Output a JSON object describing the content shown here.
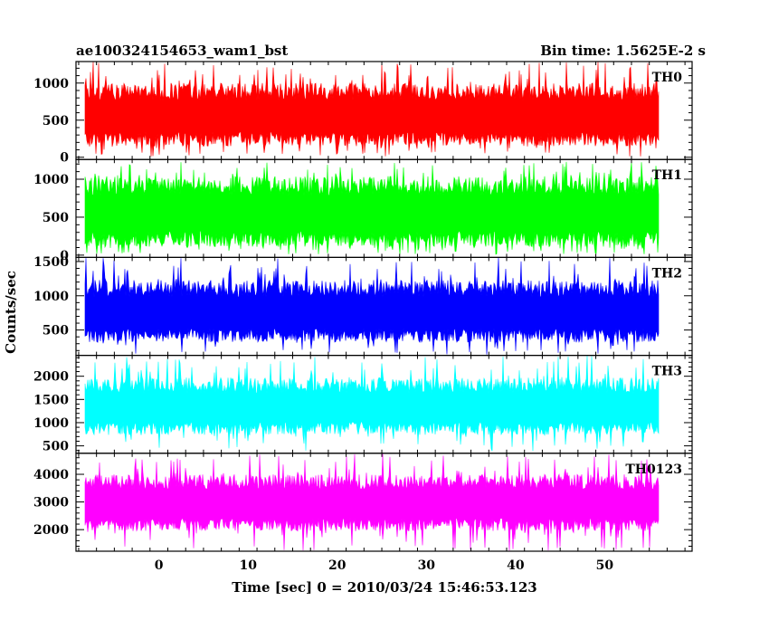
{
  "header": {
    "left_title": "ae100324154653_wam1_bst",
    "right_title": "Bin time: 1.5625E-2 s"
  },
  "chart_data": {
    "type": "line",
    "title": "ae100324154653_wam1_bst",
    "subtitle": "Bin time: 1.5625E-2 s",
    "xlabel": "Time [sec] 0 = 2010/03/24 15:46:53.123",
    "ylabel": "Counts/sec",
    "xlim": [
      -9.3,
      59.8
    ],
    "x_ticks": [
      0,
      10,
      20,
      30,
      40,
      50
    ],
    "data_x_range": [
      -8.2,
      56.0
    ],
    "bin_time": 0.015625,
    "grid": false,
    "legend": "none",
    "panels": [
      {
        "name": "TH0",
        "color": "#ff0000",
        "ylim": [
          -30,
          1290
        ],
        "y_ticks": [
          0,
          500,
          1000
        ],
        "typical_low": 150,
        "typical_high": 1000,
        "min": 10,
        "max": 1290
      },
      {
        "name": "TH1",
        "color": "#00ff00",
        "ylim": [
          -30,
          1260
        ],
        "y_ticks": [
          0,
          500,
          1000
        ],
        "typical_low": 110,
        "typical_high": 1040,
        "min": 10,
        "max": 1230
      },
      {
        "name": "TH2",
        "color": "#0000ff",
        "ylim": [
          130,
          1560
        ],
        "y_ticks": [
          500,
          1000,
          1500
        ],
        "typical_low": 320,
        "typical_high": 1230,
        "min": 140,
        "max": 1560
      },
      {
        "name": "TH3",
        "color": "#00ffff",
        "ylim": [
          340,
          2450
        ],
        "y_ticks": [
          500,
          1000,
          1500,
          2000
        ],
        "typical_low": 740,
        "typical_high": 1970,
        "min": 380,
        "max": 2450
      },
      {
        "name": "TH0123",
        "color": "#ff00ff",
        "ylim": [
          1220,
          4760
        ],
        "y_ticks": [
          2000,
          3000,
          4000
        ],
        "typical_low": 1950,
        "typical_high": 4000,
        "min": 1240,
        "max": 4760
      }
    ]
  }
}
